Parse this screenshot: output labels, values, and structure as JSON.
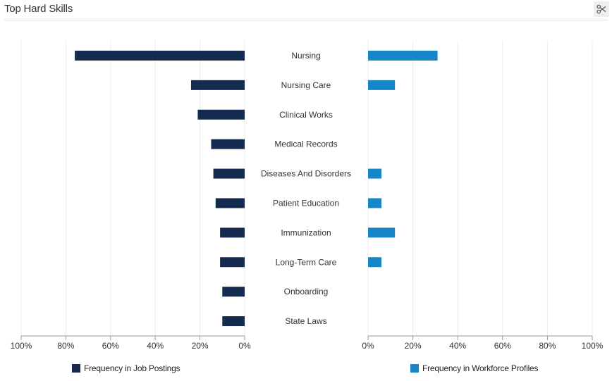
{
  "header": {
    "title": "Top Hard Skills",
    "export_icon": "scissors-icon"
  },
  "colors": {
    "job_postings": "#152a4f",
    "workforce_profiles": "#1786c8",
    "grid": "#ececec",
    "axis": "#999999"
  },
  "chart_data": {
    "type": "bar",
    "orientation": "horizontal-butterfly",
    "categories": [
      "Nursing",
      "Nursing Care",
      "Clinical Works",
      "Medical Records",
      "Diseases And Disorders",
      "Patient Education",
      "Immunization",
      "Long-Term Care",
      "Onboarding",
      "State Laws"
    ],
    "series": [
      {
        "name": "Frequency in Job Postings",
        "side": "left",
        "values": [
          76,
          24,
          21,
          15,
          14,
          13,
          11,
          11,
          10,
          10
        ]
      },
      {
        "name": "Frequency in Workforce Profiles",
        "side": "right",
        "values": [
          31,
          12,
          0,
          0,
          6,
          6,
          12,
          6,
          0,
          0
        ]
      }
    ],
    "left_axis": {
      "ticks": [
        "100%",
        "80%",
        "60%",
        "40%",
        "20%",
        "0%"
      ],
      "range": [
        100,
        0
      ]
    },
    "right_axis": {
      "ticks": [
        "0%",
        "20%",
        "40%",
        "60%",
        "80%",
        "100%"
      ],
      "range": [
        0,
        100
      ]
    },
    "grid": true,
    "legend_position": "bottom"
  },
  "legend": {
    "job_postings_label": "Frequency in Job Postings",
    "workforce_profiles_label": "Frequency in Workforce Profiles"
  }
}
